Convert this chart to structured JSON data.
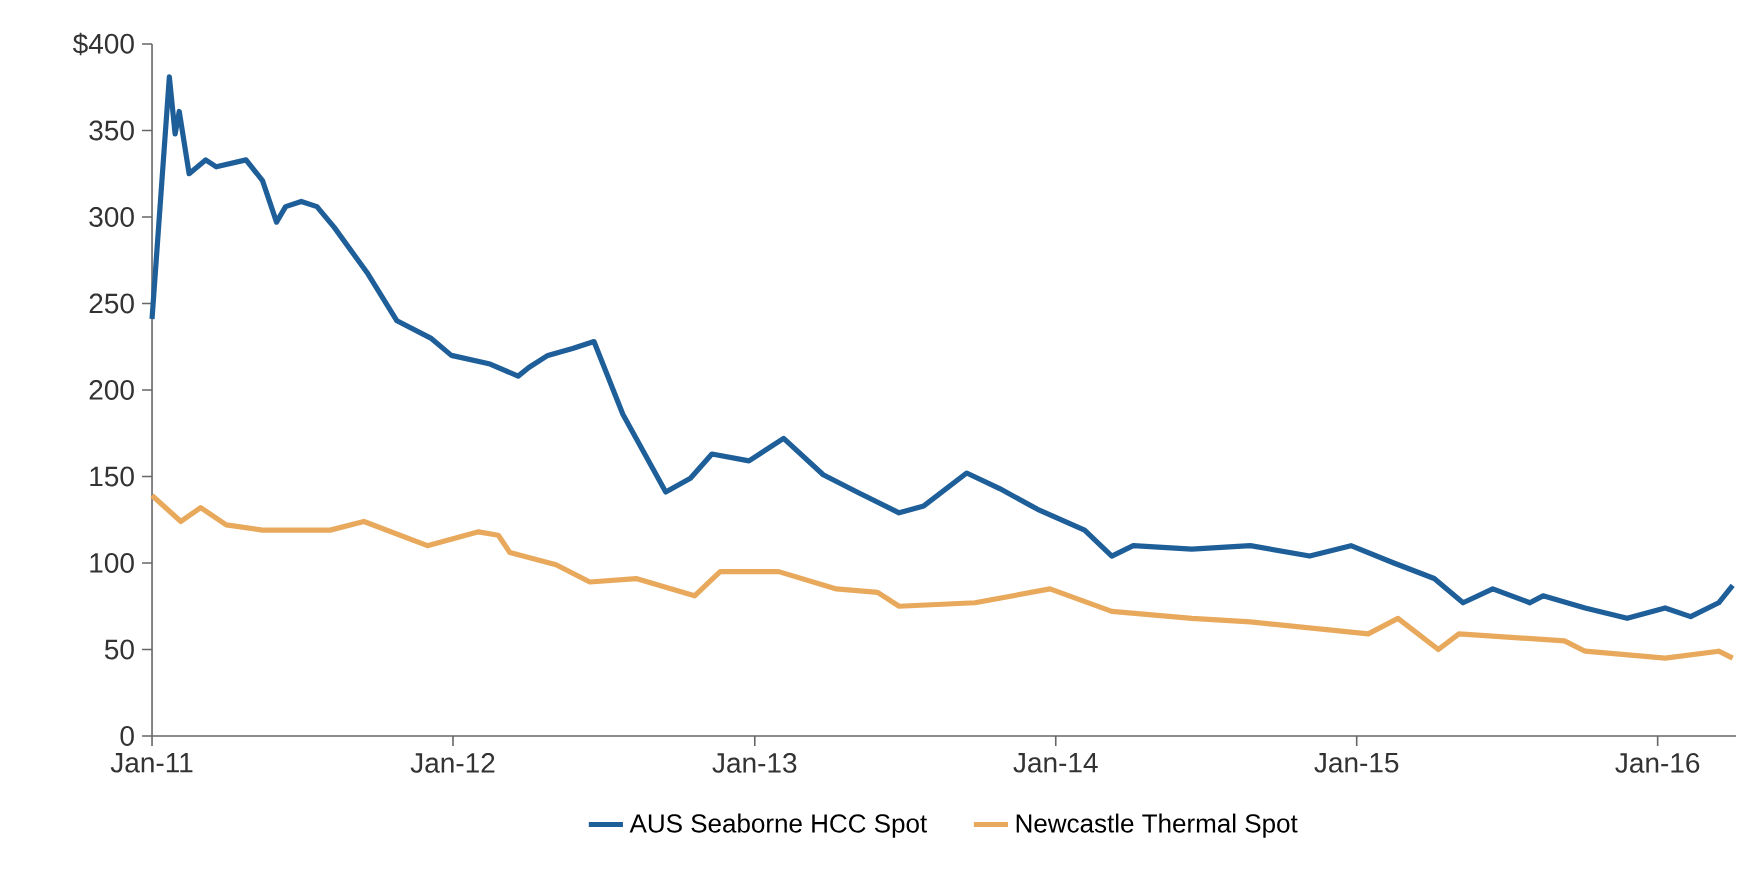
{
  "chart_data": {
    "type": "line",
    "xlim": [
      "2011-01-01",
      "2016-04-05"
    ],
    "ylim": [
      0,
      400
    ],
    "xticks": [
      {
        "value": "2011-01-01",
        "label": "Jan-11"
      },
      {
        "value": "2012-01-01",
        "label": "Jan-12"
      },
      {
        "value": "2013-01-01",
        "label": "Jan-13"
      },
      {
        "value": "2014-01-01",
        "label": "Jan-14"
      },
      {
        "value": "2015-01-01",
        "label": "Jan-15"
      },
      {
        "value": "2016-01-01",
        "label": "Jan-16"
      }
    ],
    "yticks": [
      0,
      50,
      100,
      150,
      200,
      250,
      300,
      350,
      {
        "value": 400,
        "label": "$400"
      }
    ],
    "legend": "bottom",
    "grid": false,
    "marker": "none",
    "line_style": "solid",
    "series": [
      {
        "name": "AUS Seaborne HCC Spot",
        "color": "#1f5f99",
        "x": [
          "2011-01-01",
          "2011-01-22",
          "2011-01-29",
          "2011-02-03",
          "2011-02-15",
          "2011-03-07",
          "2011-03-20",
          "2011-04-25",
          "2011-05-15",
          "2011-06-01",
          "2011-06-12",
          "2011-07-01",
          "2011-07-20",
          "2011-08-10",
          "2011-09-20",
          "2011-10-25",
          "2011-12-05",
          "2011-12-30",
          "2012-02-15",
          "2012-03-20",
          "2012-04-02",
          "2012-04-25",
          "2012-05-25",
          "2012-06-20",
          "2012-07-25",
          "2012-09-15",
          "2012-10-15",
          "2012-11-10",
          "2012-12-25",
          "2013-02-05",
          "2013-03-25",
          "2013-05-05",
          "2013-06-25",
          "2013-07-25",
          "2013-09-15",
          "2013-10-25",
          "2013-12-10",
          "2014-02-05",
          "2014-03-10",
          "2014-04-05",
          "2014-06-15",
          "2014-08-25",
          "2014-11-05",
          "2014-12-25",
          "2015-02-15",
          "2015-04-05",
          "2015-05-10",
          "2015-06-15",
          "2015-07-30",
          "2015-08-15",
          "2015-10-05",
          "2015-11-25",
          "2016-01-10",
          "2016-02-10",
          "2016-03-15",
          "2016-04-01"
        ],
        "values": [
          241,
          381,
          348,
          361,
          325,
          333,
          329,
          333,
          321,
          297,
          306,
          309,
          306,
          294,
          267,
          240,
          230,
          220,
          215,
          208,
          213,
          220,
          224,
          228,
          186,
          141,
          149,
          163,
          159,
          172,
          151,
          141,
          129,
          133,
          152,
          143,
          131,
          119,
          104,
          110,
          108,
          110,
          104,
          110,
          100,
          91,
          77,
          85,
          77,
          81,
          74,
          68,
          74,
          69,
          77,
          87
        ]
      },
      {
        "name": "Newcastle Thermal Spot",
        "color": "#e8a95c",
        "x": [
          "2011-01-01",
          "2011-02-05",
          "2011-03-01",
          "2011-04-01",
          "2011-05-15",
          "2011-08-05",
          "2011-09-15",
          "2011-12-01",
          "2012-02-01",
          "2012-02-25",
          "2012-03-10",
          "2012-05-05",
          "2012-06-15",
          "2012-08-10",
          "2012-10-20",
          "2012-11-20",
          "2013-01-30",
          "2013-04-10",
          "2013-05-30",
          "2013-06-25",
          "2013-09-25",
          "2013-12-25",
          "2014-03-10",
          "2014-06-15",
          "2014-08-25",
          "2015-01-15",
          "2015-02-20",
          "2015-04-10",
          "2015-05-05",
          "2015-09-10",
          "2015-10-05",
          "2016-01-10",
          "2016-03-15",
          "2016-04-01"
        ],
        "values": [
          139,
          124,
          132,
          122,
          119,
          119,
          124,
          110,
          118,
          116,
          106,
          99,
          89,
          91,
          81,
          95,
          95,
          85,
          83,
          75,
          77,
          85,
          72,
          68,
          66,
          59,
          68,
          50,
          59,
          55,
          49,
          45,
          49,
          45
        ]
      }
    ]
  }
}
